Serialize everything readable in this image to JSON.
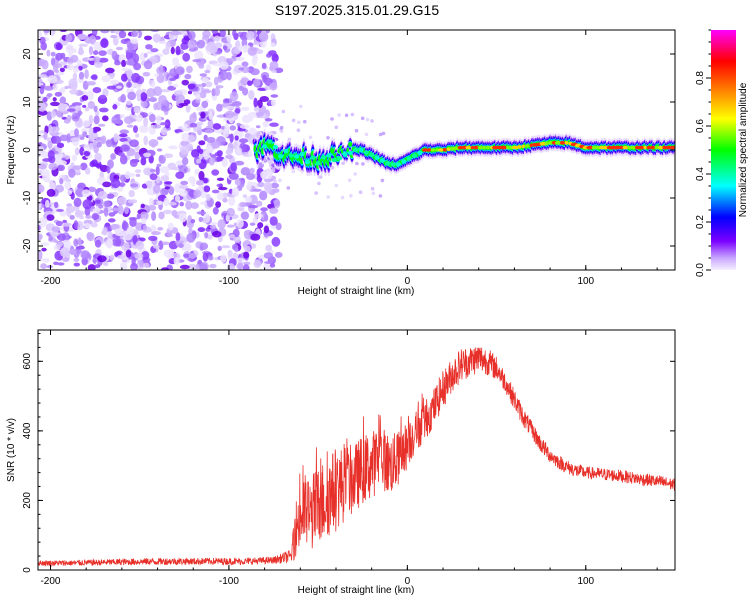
{
  "title": "S197.2025.315.01.29.G15",
  "chart_data": [
    {
      "type": "heatmap",
      "title": "S197.2025.315.01.29.G15",
      "xlabel": "Height of straight line (km)",
      "ylabel": "Frequency (Hz)",
      "xlim": [
        -207,
        150
      ],
      "ylim": [
        -25,
        25
      ],
      "xticks": [
        -200,
        -100,
        0,
        100
      ],
      "yticks": [
        -20,
        -10,
        0,
        10,
        20
      ],
      "xtick_labels": [
        "-200",
        "-100",
        "0",
        "100"
      ],
      "ytick_labels": [
        "-20",
        "-10",
        "0",
        "10",
        "20"
      ],
      "noise_region_x": [
        -207,
        -72
      ],
      "signal_track": {
        "x": [
          -85,
          -78,
          -72,
          -65,
          -58,
          -50,
          -44,
          -38,
          -32,
          -26,
          -20,
          -15,
          -10,
          -5,
          0,
          5,
          10,
          20,
          30,
          40,
          50,
          60,
          70,
          80,
          90,
          100,
          110,
          120,
          130,
          140,
          150
        ],
        "freq": [
          0,
          1,
          -0.5,
          -1.5,
          -1.5,
          -2,
          -1.5,
          -1,
          0,
          0,
          -1,
          -2,
          -3,
          -3,
          -2,
          -1,
          0,
          0,
          0.5,
          0.5,
          0.5,
          0.5,
          1,
          1.5,
          1.5,
          0.5,
          0.5,
          0.5,
          0.5,
          0.5,
          0.5
        ]
      },
      "colorbar": {
        "label": "Normalized spectral amplitude",
        "range": [
          0,
          1
        ],
        "ticks": [
          0.0,
          0.2,
          0.4,
          0.6,
          0.8
        ],
        "tick_labels": [
          "0.0",
          "0.2",
          "0.4",
          "0.6",
          "0.8"
        ],
        "colors": [
          "#f5f0ff",
          "#7b00ff",
          "#0000ff",
          "#00ffff",
          "#00ff00",
          "#ffff00",
          "#ff7f00",
          "#ff0000",
          "#ff00ff"
        ]
      }
    },
    {
      "type": "line",
      "xlabel": "Height of straight line (km)",
      "ylabel": "SNR (10 * v/v)",
      "xlim": [
        -207,
        150
      ],
      "ylim": [
        0,
        690
      ],
      "xticks": [
        -200,
        -100,
        0,
        100
      ],
      "yticks": [
        0,
        200,
        400,
        600
      ],
      "xtick_labels": [
        "-200",
        "-100",
        "0",
        "100"
      ],
      "ytick_labels": [
        "0",
        "200",
        "400",
        "600"
      ],
      "color": "#e8302a",
      "series": [
        {
          "name": "SNR",
          "x": [
            -207,
            -190,
            -170,
            -150,
            -130,
            -110,
            -90,
            -75,
            -65,
            -62,
            -58,
            -55,
            -50,
            -45,
            -40,
            -35,
            -30,
            -25,
            -20,
            -15,
            -10,
            -5,
            0,
            5,
            10,
            15,
            20,
            25,
            30,
            35,
            40,
            45,
            50,
            55,
            60,
            65,
            70,
            75,
            80,
            85,
            90,
            95,
            100,
            110,
            120,
            130,
            140,
            150
          ],
          "y": [
            20,
            20,
            22,
            24,
            25,
            25,
            25,
            28,
            40,
            130,
            170,
            160,
            180,
            210,
            230,
            250,
            260,
            290,
            300,
            330,
            300,
            320,
            360,
            400,
            430,
            470,
            520,
            560,
            590,
            600,
            610,
            600,
            580,
            540,
            490,
            440,
            400,
            360,
            330,
            310,
            295,
            285,
            280,
            275,
            270,
            262,
            255,
            245
          ],
          "noise": [
            8,
            8,
            9,
            10,
            10,
            10,
            10,
            10,
            20,
            90,
            110,
            110,
            120,
            120,
            120,
            110,
            100,
            100,
            100,
            90,
            90,
            80,
            70,
            60,
            60,
            55,
            55,
            50,
            50,
            45,
            45,
            40,
            35,
            30,
            30,
            28,
            25,
            25,
            22,
            20,
            20,
            20,
            18,
            18,
            18,
            18,
            18,
            18
          ]
        }
      ]
    }
  ]
}
